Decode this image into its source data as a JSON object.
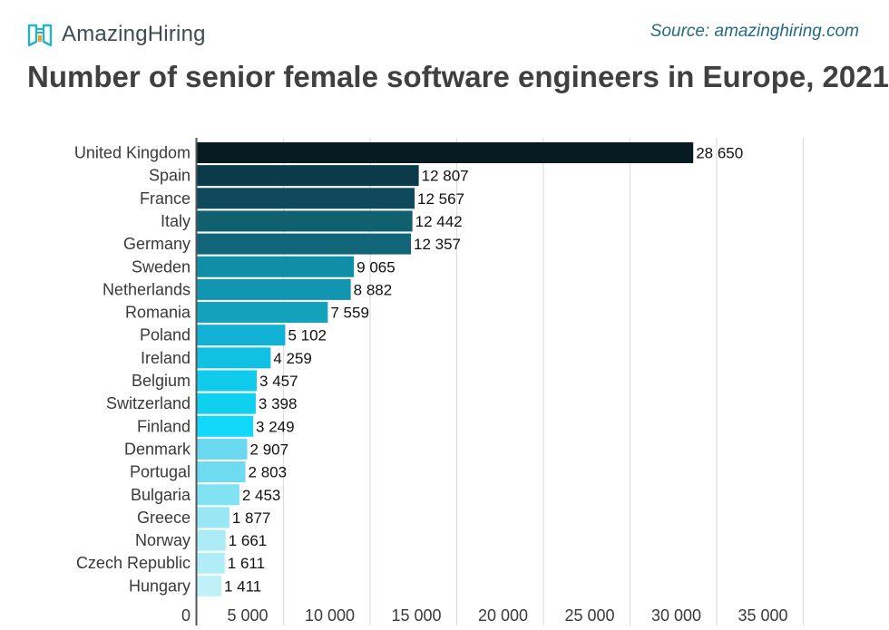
{
  "header": {
    "logo_text": "AmazingHiring",
    "source": "Source: amazinghiring.com",
    "title": "Number of senior female software engineers in Europe, 2021"
  },
  "chart_data": {
    "type": "bar",
    "orientation": "horizontal",
    "title": "Number of senior female software engineers in Europe, 2021",
    "categories": [
      "United Kingdom",
      "Spain",
      "France",
      "Italy",
      "Germany",
      "Sweden",
      "Netherlands",
      "Romania",
      "Poland",
      "Ireland",
      "Belgium",
      "Switzerland",
      "Finland",
      "Denmark",
      "Portugal",
      "Bulgaria",
      "Greece",
      "Norway",
      "Czech Republic",
      "Hungary"
    ],
    "values": [
      28650,
      12807,
      12567,
      12442,
      12357,
      9065,
      8882,
      7559,
      5102,
      4259,
      3457,
      3398,
      3249,
      2907,
      2803,
      2453,
      1877,
      1661,
      1611,
      1411
    ],
    "value_labels": [
      "28 650",
      "12 807",
      "12 567",
      "12 442",
      "12 357",
      "9 065",
      "8 882",
      "7 559",
      "5 102",
      "4 259",
      "3 457",
      "3 398",
      "3 249",
      "2 907",
      "2 803",
      "2 453",
      "1 877",
      "1 661",
      "1 611",
      "1 411"
    ],
    "colors": [
      "#071c22",
      "#0b3a49",
      "#0e4a5c",
      "#10606f",
      "#106578",
      "#0f8ea8",
      "#1295b0",
      "#14a1bc",
      "#12b2d6",
      "#10c1e3",
      "#11cbec",
      "#10d0f0",
      "#11d9fb",
      "#6ad8ee",
      "#6edbf0",
      "#80e2f2",
      "#99e7f4",
      "#abecf6",
      "#b1edf6",
      "#c0f1f8"
    ],
    "xlim": [
      0,
      35000
    ],
    "x_ticks": [
      0,
      5000,
      10000,
      15000,
      20000,
      25000,
      30000,
      35000
    ],
    "x_tick_labels": [
      "0",
      "5 000",
      "10 000",
      "15 000",
      "20 000",
      "25 000",
      "30 000",
      "35 000"
    ],
    "grid": true,
    "xlabel": "",
    "ylabel": ""
  }
}
